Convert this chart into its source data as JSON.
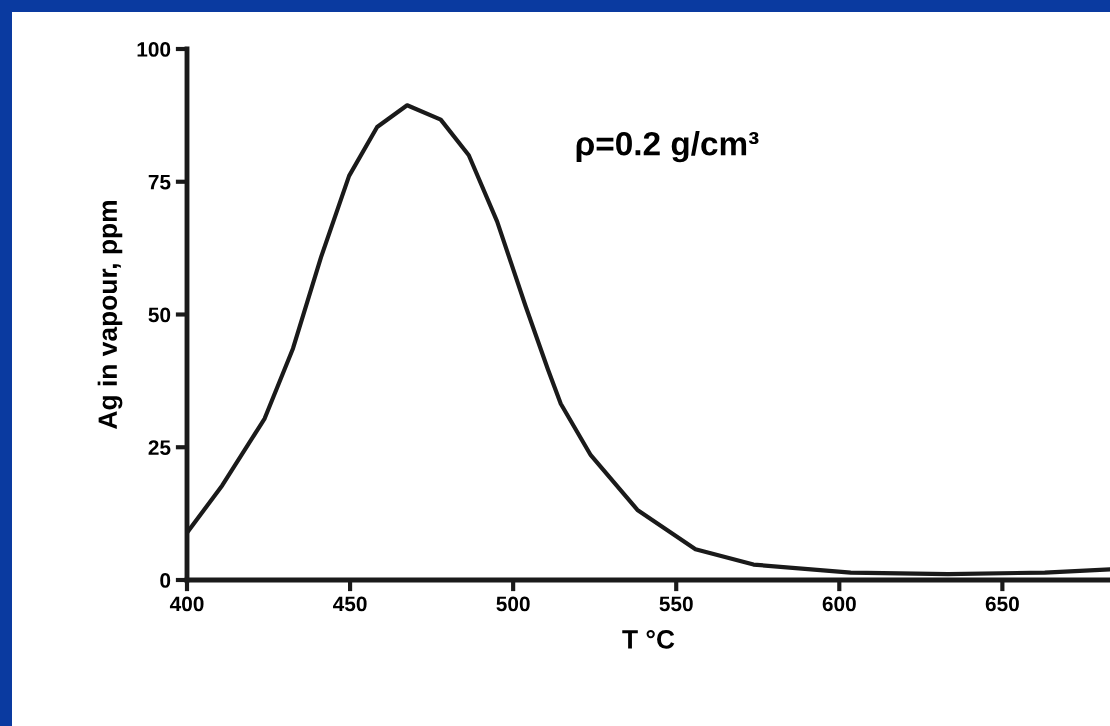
{
  "chart_data": {
    "type": "line",
    "xlabel": "T °C",
    "ylabel": "Ag in vapour, ppm",
    "annotations": [
      "ρ=0.2 g/cm³"
    ],
    "xlim": [
      400,
      683
    ],
    "xticks": [
      400,
      450,
      500,
      550,
      600,
      650
    ],
    "ylim": [
      0,
      100
    ],
    "yticks": [
      0,
      25,
      50,
      75,
      100
    ],
    "grid": false,
    "legend": false,
    "marker": "none",
    "line_style": "solid",
    "series": [
      {
        "color": "#1a1a1a",
        "x": [
          400,
          410.8,
          423.8,
          432.5,
          441.1,
          449.7,
          458.3,
          467.5,
          477.8,
          486.4,
          495.1,
          503.8,
          510.7,
          514.6,
          523.8,
          538.1,
          555.9,
          573.7,
          603.5,
          633.3,
          663,
          683
        ],
        "values": [
          8.9,
          17.8,
          30.4,
          43.6,
          60.8,
          76.1,
          85.3,
          89.4,
          86.7,
          80,
          67.5,
          51.6,
          39.6,
          33.2,
          23.5,
          13.2,
          5.8,
          2.9,
          1.4,
          1.1,
          1.4,
          2.0
        ]
      }
    ]
  }
}
